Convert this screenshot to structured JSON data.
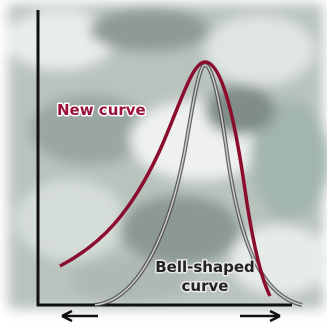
{
  "labels": {
    "new_curve": "New curve",
    "bell_curve": [
      "Bell-shaped",
      "curve"
    ]
  }
}
